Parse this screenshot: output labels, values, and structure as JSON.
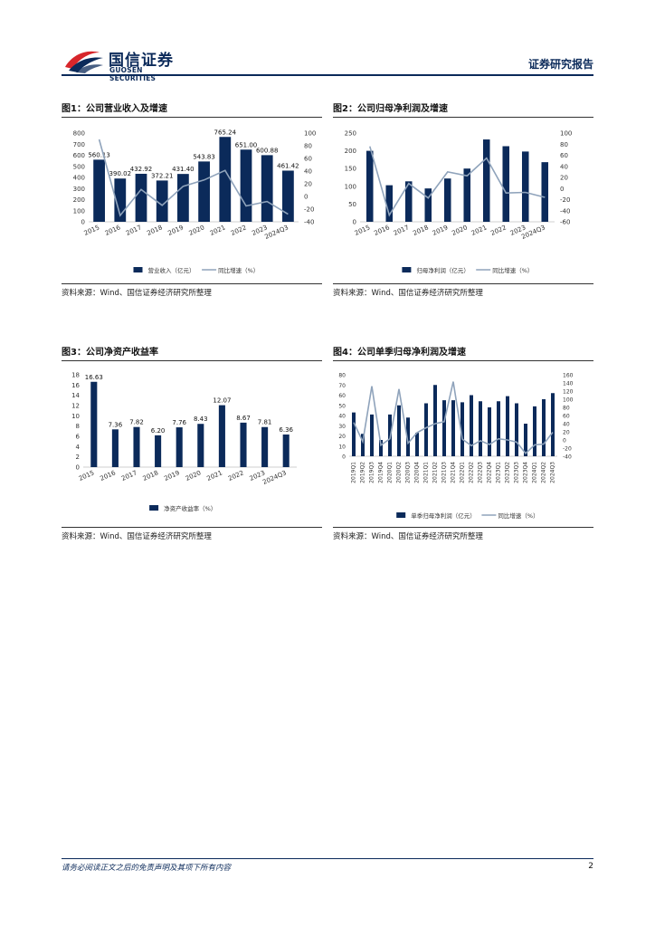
{
  "header": {
    "logo_cn": "国信证券",
    "logo_en": "GUOSEN SECURITIES",
    "report_type": "证券研究报告",
    "brand_color": "#0b2a5a",
    "logo_accent": "#d7262b"
  },
  "figures": [
    {
      "title": "图1：公司营业收入及增速",
      "source": "资料来源：Wind、国信证券经济研究所整理",
      "chart_data": {
        "type": "bar+line",
        "categories": [
          "2015",
          "2016",
          "2017",
          "2018",
          "2019",
          "2020",
          "2021",
          "2022",
          "2023",
          "2024Q3"
        ],
        "series": [
          {
            "name": "营业收入（亿元）",
            "type": "bar",
            "axis": "left",
            "values": [
              560.13,
              390.02,
              432.92,
              372.21,
              431.4,
              543.83,
              765.24,
              651.0,
              600.88,
              461.42
            ],
            "labels": [
              "560.13",
              "390.02",
              "432.92",
              "372.21",
              "431.40",
              "543.83",
              "765.24",
              "651.00",
              "600.88",
              "461.42"
            ]
          },
          {
            "name": "同比增速（%）",
            "type": "line",
            "axis": "right",
            "values": [
              90,
              -30,
              11,
              -14,
              16,
              26,
              41,
              -15,
              -8,
              -28
            ]
          }
        ],
        "ylim_left": [
          0,
          800
        ],
        "yticks_left": [
          0,
          100,
          200,
          300,
          400,
          500,
          600,
          700,
          800
        ],
        "ylim_right": [
          -40,
          100
        ],
        "yticks_right": [
          -40,
          -20,
          0,
          20,
          40,
          60,
          80,
          100
        ],
        "bar_color": "#0b2a5a",
        "line_color": "#8fa3bb"
      }
    },
    {
      "title": "图2：公司归母净利润及增速",
      "source": "资料来源：Wind、国信证券经济研究所整理",
      "chart_data": {
        "type": "bar+line",
        "categories": [
          "2015",
          "2016",
          "2017",
          "2018",
          "2019",
          "2020",
          "2021",
          "2022",
          "2023",
          "2024Q3"
        ],
        "series": [
          {
            "name": "归母净利润（亿元）",
            "type": "bar",
            "axis": "left",
            "values": [
              200,
              103,
              114,
              94,
              122,
              150,
              232,
              213,
              198,
              168
            ]
          },
          {
            "name": "同比增速（%）",
            "type": "line",
            "axis": "right",
            "values": [
              76,
              -48,
              9,
              -17,
              30,
              23,
              55,
              -8,
              -7,
              -16
            ]
          }
        ],
        "ylim_left": [
          0,
          250
        ],
        "yticks_left": [
          0,
          50,
          100,
          150,
          200,
          250
        ],
        "ylim_right": [
          -60,
          100
        ],
        "yticks_right": [
          -60,
          -40,
          -20,
          0,
          20,
          40,
          60,
          80,
          100
        ],
        "bar_color": "#0b2a5a",
        "line_color": "#8fa3bb"
      }
    },
    {
      "title": "图3：公司净资产收益率",
      "source": "资料来源：Wind、国信证券经济研究所整理",
      "chart_data": {
        "type": "bar",
        "categories": [
          "2015",
          "2016",
          "2017",
          "2018",
          "2019",
          "2020",
          "2021",
          "2022",
          "2023",
          "2024Q3"
        ],
        "series": [
          {
            "name": "净资产收益率（%）",
            "type": "bar",
            "axis": "left",
            "values": [
              16.63,
              7.36,
              7.82,
              6.2,
              7.76,
              8.43,
              12.07,
              8.67,
              7.81,
              6.36
            ],
            "labels": [
              "16.63",
              "7.36",
              "7.82",
              "6.20",
              "7.76",
              "8.43",
              "12.07",
              "8.67",
              "7.81",
              "6.36"
            ]
          }
        ],
        "ylim_left": [
          0,
          18
        ],
        "yticks_left": [
          0,
          2,
          4,
          6,
          8,
          10,
          12,
          14,
          16,
          18
        ],
        "bar_color": "#0b2a5a"
      }
    },
    {
      "title": "图4：公司单季归母净利润及增速",
      "source": "资料来源：Wind、国信证券经济研究所整理",
      "chart_data": {
        "type": "bar+line",
        "categories": [
          "2019Q1",
          "2019Q2",
          "2019Q3",
          "2019Q4",
          "2020Q1",
          "2020Q2",
          "2020Q3",
          "2020Q4",
          "2021Q1",
          "2021Q2",
          "2021Q3",
          "2021Q4",
          "2022Q1",
          "2022Q2",
          "2022Q3",
          "2022Q4",
          "2023Q1",
          "2023Q2",
          "2023Q3",
          "2023Q4",
          "2024Q1",
          "2024Q2",
          "2024Q3"
        ],
        "series": [
          {
            "name": "单季归母净利润（亿元）",
            "type": "bar",
            "axis": "left",
            "values": [
              43,
              22,
              41,
              16,
              41,
              50,
              38,
              23,
              52,
              70,
              55,
              55,
              53,
              60,
              54,
              48,
              54,
              59,
              52,
              32,
              49,
              56,
              62
            ]
          },
          {
            "name": "同比增速（%）",
            "type": "line",
            "axis": "right",
            "values": [
              43,
              -4,
              132,
              -13,
              3,
              125,
              -8,
              18,
              30,
              40,
              45,
              143,
              2,
              -14,
              -2,
              -11,
              3,
              0,
              -5,
              -33,
              -12,
              -10,
              19
            ]
          }
        ],
        "ylim_left": [
          0,
          80
        ],
        "yticks_left": [
          0,
          10,
          20,
          30,
          40,
          50,
          60,
          70,
          80
        ],
        "ylim_right": [
          -40,
          160
        ],
        "yticks_right": [
          -40,
          -20,
          0,
          20,
          40,
          60,
          80,
          100,
          120,
          140,
          160
        ],
        "bar_color": "#0b2a5a",
        "line_color": "#8fa3bb"
      }
    }
  ],
  "footer": {
    "disclaimer": "请务必阅读正文之后的免责声明及其项下所有内容",
    "page_number": "2"
  }
}
